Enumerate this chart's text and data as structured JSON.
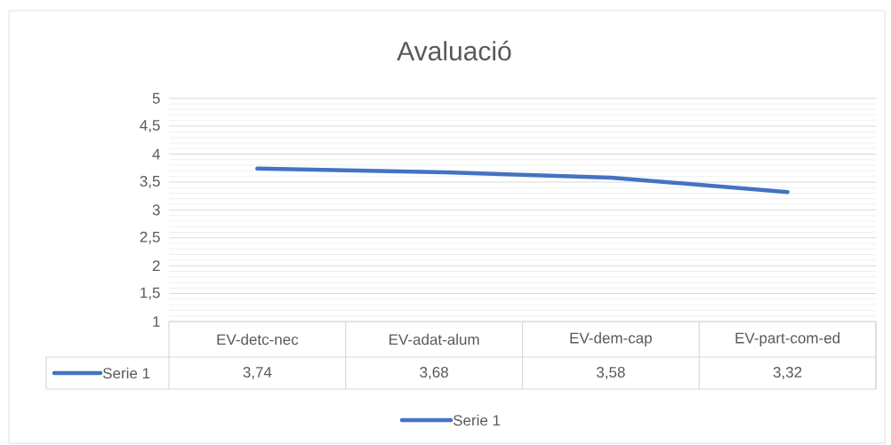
{
  "chart_data": {
    "type": "line",
    "title": "Avaluació",
    "categories": [
      "EV-detc-nec",
      "EV-adat-alum",
      "EV-dem-cap",
      "EV-part-com-ed"
    ],
    "series": [
      {
        "name": "Serie 1",
        "color": "#4472c4",
        "values": [
          3.74,
          3.68,
          3.58,
          3.32
        ],
        "value_labels": [
          "3,74",
          "3,68",
          "3,58",
          "3,32"
        ]
      }
    ],
    "ylim": [
      1,
      5
    ],
    "yticks": [
      1,
      {
        "value": 1.5,
        "label": "1,5"
      },
      2,
      {
        "value": 2.5,
        "label": "2,5"
      },
      3,
      {
        "value": 3.5,
        "label": "3,5"
      },
      4,
      {
        "value": 4.5,
        "label": "4,5"
      },
      5
    ],
    "grid": true,
    "legend": "bottom",
    "marker": "none",
    "line_style": "solid"
  }
}
